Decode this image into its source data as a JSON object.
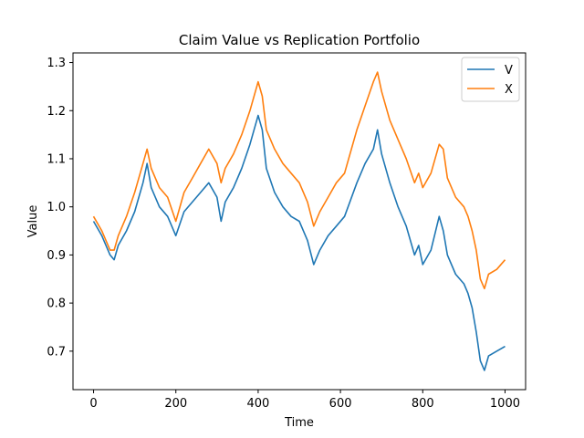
{
  "chart_data": {
    "type": "line",
    "title": "Claim Value vs Replication Portfolio",
    "xlabel": "Time",
    "ylabel": "Value",
    "xlim": [
      -50,
      1050
    ],
    "ylim": [
      0.62,
      1.32
    ],
    "xticks": [
      0,
      200,
      400,
      600,
      800,
      1000
    ],
    "yticks": [
      0.7,
      0.8,
      0.9,
      1.0,
      1.1,
      1.2,
      1.3
    ],
    "ytick_labels": [
      "0.7",
      "0.8",
      "0.9",
      "1.0",
      "1.1",
      "1.2",
      "1.3"
    ],
    "grid": false,
    "legend_position": "top-right",
    "series": [
      {
        "name": "V",
        "color": "#1f77b4",
        "x": [
          0,
          20,
          40,
          50,
          60,
          80,
          100,
          120,
          130,
          140,
          160,
          180,
          200,
          220,
          240,
          260,
          280,
          300,
          310,
          320,
          340,
          360,
          380,
          400,
          410,
          420,
          440,
          460,
          480,
          500,
          520,
          535,
          550,
          570,
          590,
          610,
          640,
          660,
          680,
          690,
          700,
          720,
          740,
          760,
          780,
          790,
          800,
          820,
          840,
          850,
          860,
          880,
          900,
          910,
          920,
          930,
          940,
          950,
          960,
          980,
          1000
        ],
        "y": [
          0.97,
          0.94,
          0.9,
          0.89,
          0.92,
          0.95,
          0.99,
          1.05,
          1.09,
          1.04,
          1.0,
          0.98,
          0.94,
          0.99,
          1.01,
          1.03,
          1.05,
          1.02,
          0.97,
          1.01,
          1.04,
          1.08,
          1.13,
          1.19,
          1.16,
          1.08,
          1.03,
          1.0,
          0.98,
          0.97,
          0.93,
          0.88,
          0.91,
          0.94,
          0.96,
          0.98,
          1.05,
          1.09,
          1.12,
          1.16,
          1.11,
          1.05,
          1.0,
          0.96,
          0.9,
          0.92,
          0.88,
          0.91,
          0.98,
          0.95,
          0.9,
          0.86,
          0.84,
          0.82,
          0.79,
          0.74,
          0.68,
          0.66,
          0.69,
          0.7,
          0.71
        ]
      },
      {
        "name": "X",
        "color": "#ff7f0e",
        "x": [
          0,
          20,
          40,
          50,
          60,
          80,
          100,
          120,
          130,
          140,
          160,
          180,
          200,
          220,
          240,
          260,
          280,
          300,
          310,
          320,
          340,
          360,
          380,
          400,
          410,
          420,
          440,
          460,
          480,
          500,
          520,
          535,
          550,
          570,
          590,
          610,
          640,
          660,
          680,
          690,
          700,
          720,
          740,
          760,
          780,
          790,
          800,
          820,
          840,
          850,
          860,
          880,
          900,
          910,
          920,
          930,
          940,
          950,
          960,
          980,
          1000
        ],
        "y": [
          0.98,
          0.95,
          0.91,
          0.91,
          0.94,
          0.98,
          1.03,
          1.09,
          1.12,
          1.08,
          1.04,
          1.02,
          0.97,
          1.03,
          1.06,
          1.09,
          1.12,
          1.09,
          1.05,
          1.08,
          1.11,
          1.15,
          1.2,
          1.26,
          1.23,
          1.16,
          1.12,
          1.09,
          1.07,
          1.05,
          1.01,
          0.96,
          0.99,
          1.02,
          1.05,
          1.07,
          1.16,
          1.21,
          1.26,
          1.28,
          1.24,
          1.18,
          1.14,
          1.1,
          1.05,
          1.07,
          1.04,
          1.07,
          1.13,
          1.12,
          1.06,
          1.02,
          1.0,
          0.98,
          0.95,
          0.91,
          0.85,
          0.83,
          0.86,
          0.87,
          0.89
        ]
      }
    ]
  }
}
